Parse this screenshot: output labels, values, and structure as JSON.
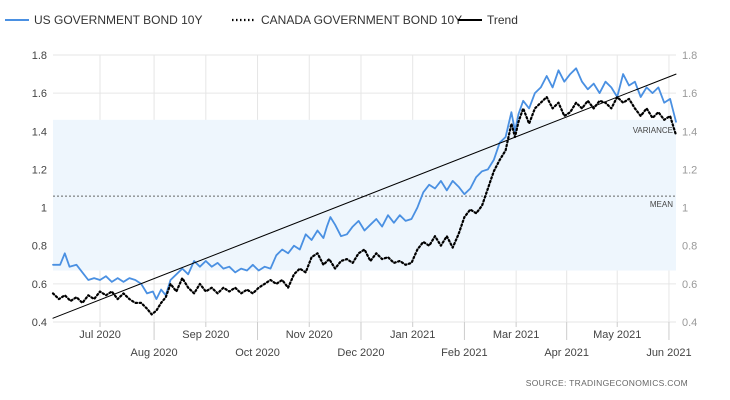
{
  "chart_data": {
    "type": "line",
    "legend_placement": "top-left",
    "grid": true,
    "ylim": [
      0.4,
      1.8
    ],
    "y_ticks": [
      0.4,
      0.6,
      0.8,
      1,
      1.2,
      1.4,
      1.6,
      1.8
    ],
    "y_tick_labels": [
      "0.4",
      "0.6",
      "0.8",
      "1",
      "1.2",
      "1.4",
      "1.6",
      "1.8"
    ],
    "xlim": [
      0,
      53
    ],
    "x_ticks": [
      {
        "label": "Jul 2020",
        "pos": 4,
        "row": "upper"
      },
      {
        "label": "Aug 2020",
        "pos": 8.6,
        "row": "lower"
      },
      {
        "label": "Sep 2020",
        "pos": 13,
        "row": "upper"
      },
      {
        "label": "Oct 2020",
        "pos": 17.4,
        "row": "lower"
      },
      {
        "label": "Nov 2020",
        "pos": 21.8,
        "row": "upper"
      },
      {
        "label": "Dec 2020",
        "pos": 26.2,
        "row": "lower"
      },
      {
        "label": "Jan 2021",
        "pos": 30.6,
        "row": "upper"
      },
      {
        "label": "Feb 2021",
        "pos": 35,
        "row": "lower"
      },
      {
        "label": "Mar 2021",
        "pos": 39.4,
        "row": "upper"
      },
      {
        "label": "Apr 2021",
        "pos": 43.7,
        "row": "lower"
      },
      {
        "label": "May 2021",
        "pos": 48,
        "row": "upper"
      },
      {
        "label": "Jun 2021",
        "pos": 52.4,
        "row": "lower"
      }
    ],
    "series": [
      {
        "name": "US GOVERNMENT BOND 10Y",
        "style": "solid",
        "color": "#4a90e2",
        "points": [
          [
            0,
            0.7
          ],
          [
            0.6,
            0.7
          ],
          [
            1.0,
            0.76
          ],
          [
            1.4,
            0.69
          ],
          [
            2,
            0.7
          ],
          [
            2.5,
            0.66
          ],
          [
            3,
            0.62
          ],
          [
            3.5,
            0.63
          ],
          [
            4,
            0.62
          ],
          [
            4.5,
            0.64
          ],
          [
            5,
            0.61
          ],
          [
            5.5,
            0.63
          ],
          [
            6,
            0.61
          ],
          [
            6.5,
            0.63
          ],
          [
            7,
            0.62
          ],
          [
            7.5,
            0.6
          ],
          [
            8,
            0.55
          ],
          [
            8.5,
            0.56
          ],
          [
            8.8,
            0.52
          ],
          [
            9.2,
            0.57
          ],
          [
            9.6,
            0.54
          ],
          [
            10,
            0.62
          ],
          [
            10.5,
            0.65
          ],
          [
            11,
            0.68
          ],
          [
            11.5,
            0.65
          ],
          [
            12,
            0.72
          ],
          [
            12.5,
            0.69
          ],
          [
            13,
            0.72
          ],
          [
            13.5,
            0.69
          ],
          [
            14,
            0.71
          ],
          [
            14.5,
            0.68
          ],
          [
            15,
            0.69
          ],
          [
            15.5,
            0.66
          ],
          [
            16,
            0.68
          ],
          [
            16.5,
            0.67
          ],
          [
            17,
            0.7
          ],
          [
            17.5,
            0.67
          ],
          [
            18,
            0.69
          ],
          [
            18.5,
            0.68
          ],
          [
            19,
            0.75
          ],
          [
            19.5,
            0.78
          ],
          [
            20,
            0.76
          ],
          [
            20.5,
            0.8
          ],
          [
            21,
            0.78
          ],
          [
            21.5,
            0.86
          ],
          [
            22,
            0.83
          ],
          [
            22.5,
            0.88
          ],
          [
            23,
            0.84
          ],
          [
            23.3,
            0.9
          ],
          [
            23.6,
            0.95
          ],
          [
            24,
            0.91
          ],
          [
            24.5,
            0.85
          ],
          [
            25,
            0.86
          ],
          [
            25.5,
            0.9
          ],
          [
            26,
            0.93
          ],
          [
            26.5,
            0.88
          ],
          [
            27,
            0.91
          ],
          [
            27.5,
            0.94
          ],
          [
            28,
            0.9
          ],
          [
            28.5,
            0.96
          ],
          [
            29,
            0.92
          ],
          [
            29.5,
            0.96
          ],
          [
            30,
            0.93
          ],
          [
            30.5,
            0.94
          ],
          [
            31,
            1.0
          ],
          [
            31.5,
            1.08
          ],
          [
            32,
            1.12
          ],
          [
            32.5,
            1.1
          ],
          [
            33,
            1.14
          ],
          [
            33.5,
            1.09
          ],
          [
            34,
            1.14
          ],
          [
            34.5,
            1.11
          ],
          [
            35,
            1.07
          ],
          [
            35.5,
            1.1
          ],
          [
            36,
            1.16
          ],
          [
            36.5,
            1.19
          ],
          [
            37,
            1.2
          ],
          [
            37.5,
            1.25
          ],
          [
            38,
            1.34
          ],
          [
            38.5,
            1.37
          ],
          [
            39,
            1.5
          ],
          [
            39.3,
            1.4
          ],
          [
            39.6,
            1.49
          ],
          [
            40,
            1.56
          ],
          [
            40.5,
            1.52
          ],
          [
            41,
            1.6
          ],
          [
            41.5,
            1.63
          ],
          [
            42,
            1.69
          ],
          [
            42.5,
            1.63
          ],
          [
            43,
            1.72
          ],
          [
            43.5,
            1.66
          ],
          [
            44,
            1.7
          ],
          [
            44.5,
            1.73
          ],
          [
            45,
            1.66
          ],
          [
            45.5,
            1.62
          ],
          [
            46,
            1.65
          ],
          [
            46.5,
            1.6
          ],
          [
            47,
            1.66
          ],
          [
            47.5,
            1.63
          ],
          [
            48,
            1.58
          ],
          [
            48.5,
            1.7
          ],
          [
            49,
            1.64
          ],
          [
            49.5,
            1.66
          ],
          [
            50,
            1.58
          ],
          [
            50.5,
            1.63
          ],
          [
            51,
            1.6
          ],
          [
            51.5,
            1.63
          ],
          [
            52,
            1.55
          ],
          [
            52.5,
            1.57
          ],
          [
            53,
            1.45
          ]
        ]
      },
      {
        "name": "CANADA GOVERNMENT BOND 10Y",
        "style": "dotted",
        "color": "#000000",
        "points": [
          [
            0,
            0.55
          ],
          [
            0.5,
            0.52
          ],
          [
            1,
            0.54
          ],
          [
            1.5,
            0.51
          ],
          [
            2,
            0.53
          ],
          [
            2.5,
            0.5
          ],
          [
            3,
            0.54
          ],
          [
            3.5,
            0.52
          ],
          [
            4,
            0.56
          ],
          [
            4.5,
            0.54
          ],
          [
            5,
            0.56
          ],
          [
            5.5,
            0.52
          ],
          [
            6,
            0.55
          ],
          [
            6.5,
            0.52
          ],
          [
            7,
            0.5
          ],
          [
            7.5,
            0.5
          ],
          [
            8,
            0.47
          ],
          [
            8.4,
            0.44
          ],
          [
            8.8,
            0.46
          ],
          [
            9.2,
            0.5
          ],
          [
            9.6,
            0.53
          ],
          [
            10,
            0.6
          ],
          [
            10.5,
            0.56
          ],
          [
            11,
            0.63
          ],
          [
            11.5,
            0.58
          ],
          [
            12,
            0.55
          ],
          [
            12.5,
            0.6
          ],
          [
            13,
            0.56
          ],
          [
            13.5,
            0.58
          ],
          [
            14,
            0.55
          ],
          [
            14.5,
            0.58
          ],
          [
            15,
            0.56
          ],
          [
            15.5,
            0.58
          ],
          [
            16,
            0.55
          ],
          [
            16.5,
            0.57
          ],
          [
            17,
            0.55
          ],
          [
            17.5,
            0.58
          ],
          [
            18,
            0.6
          ],
          [
            18.5,
            0.62
          ],
          [
            19,
            0.6
          ],
          [
            19.5,
            0.62
          ],
          [
            20,
            0.58
          ],
          [
            20.5,
            0.65
          ],
          [
            21,
            0.68
          ],
          [
            21.5,
            0.66
          ],
          [
            22,
            0.74
          ],
          [
            22.5,
            0.76
          ],
          [
            23,
            0.7
          ],
          [
            23.5,
            0.73
          ],
          [
            24,
            0.68
          ],
          [
            24.5,
            0.72
          ],
          [
            25,
            0.73
          ],
          [
            25.5,
            0.71
          ],
          [
            26,
            0.76
          ],
          [
            26.5,
            0.78
          ],
          [
            27,
            0.72
          ],
          [
            27.5,
            0.76
          ],
          [
            28,
            0.73
          ],
          [
            28.5,
            0.74
          ],
          [
            29,
            0.71
          ],
          [
            29.5,
            0.72
          ],
          [
            30,
            0.7
          ],
          [
            30.5,
            0.71
          ],
          [
            31,
            0.78
          ],
          [
            31.5,
            0.82
          ],
          [
            32,
            0.8
          ],
          [
            32.5,
            0.85
          ],
          [
            33,
            0.8
          ],
          [
            33.5,
            0.85
          ],
          [
            34,
            0.79
          ],
          [
            34.5,
            0.86
          ],
          [
            35,
            0.95
          ],
          [
            35.5,
            0.99
          ],
          [
            36,
            0.97
          ],
          [
            36.5,
            1.01
          ],
          [
            37,
            1.1
          ],
          [
            37.5,
            1.19
          ],
          [
            38,
            1.25
          ],
          [
            38.5,
            1.3
          ],
          [
            39,
            1.44
          ],
          [
            39.3,
            1.37
          ],
          [
            39.6,
            1.45
          ],
          [
            40,
            1.52
          ],
          [
            40.5,
            1.44
          ],
          [
            41,
            1.52
          ],
          [
            41.5,
            1.55
          ],
          [
            42,
            1.58
          ],
          [
            42.5,
            1.52
          ],
          [
            43,
            1.55
          ],
          [
            43.5,
            1.48
          ],
          [
            44,
            1.5
          ],
          [
            44.5,
            1.55
          ],
          [
            45,
            1.52
          ],
          [
            45.5,
            1.56
          ],
          [
            46,
            1.52
          ],
          [
            46.5,
            1.56
          ],
          [
            47,
            1.55
          ],
          [
            47.5,
            1.52
          ],
          [
            48,
            1.58
          ],
          [
            48.5,
            1.55
          ],
          [
            49,
            1.57
          ],
          [
            49.5,
            1.52
          ],
          [
            50,
            1.48
          ],
          [
            50.5,
            1.52
          ],
          [
            51,
            1.47
          ],
          [
            51.5,
            1.5
          ],
          [
            52,
            1.46
          ],
          [
            52.5,
            1.48
          ],
          [
            53,
            1.38
          ]
        ]
      },
      {
        "name": "Trend",
        "style": "solid",
        "color": "#000000",
        "points": [
          [
            0,
            0.42
          ],
          [
            53,
            1.7
          ]
        ]
      }
    ],
    "bands": [
      {
        "label": "VARIANCE",
        "y_low": 0.67,
        "y_high": 1.46,
        "color": "#eef6fd"
      }
    ],
    "reference_lines": [
      {
        "label": "MEAN",
        "y": 1.06,
        "style": "dashed"
      }
    ],
    "source": "SOURCE:  TRADINGECONOMICS.COM"
  }
}
